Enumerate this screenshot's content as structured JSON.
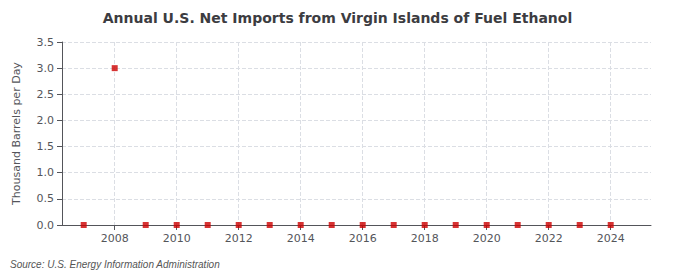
{
  "chart_data": {
    "type": "scatter",
    "title": "Annual U.S. Net Imports from Virgin Islands of Fuel Ethanol",
    "ylabel": "Thousand Barrels per Day",
    "annotation": "Source: U.S. Energy Information Administration",
    "x": [
      2007,
      2008,
      2009,
      2010,
      2011,
      2012,
      2013,
      2014,
      2015,
      2016,
      2017,
      2018,
      2019,
      2020,
      2021,
      2022,
      2023,
      2024
    ],
    "values": [
      0.0,
      3.0,
      0.0,
      0.0,
      0.0,
      0.0,
      0.0,
      0.0,
      0.0,
      0.0,
      0.0,
      0.0,
      0.0,
      0.0,
      0.0,
      0.0,
      0.0,
      0.0
    ],
    "color": "#cc0000",
    "marker": "square",
    "xlim": [
      2006.3,
      2025.3
    ],
    "xticks": [
      2008,
      2010,
      2012,
      2014,
      2016,
      2018,
      2020,
      2022,
      2024
    ],
    "ylim": [
      0.0,
      3.5
    ],
    "yticks": [
      {
        "value": 0.0,
        "label": "0.0"
      },
      0.5,
      {
        "value": 1.0,
        "label": "1.0"
      },
      1.5,
      {
        "value": 2.0,
        "label": "2.0"
      },
      2.5,
      {
        "value": 3.0,
        "label": "3.0"
      },
      3.5
    ],
    "grid": true
  }
}
